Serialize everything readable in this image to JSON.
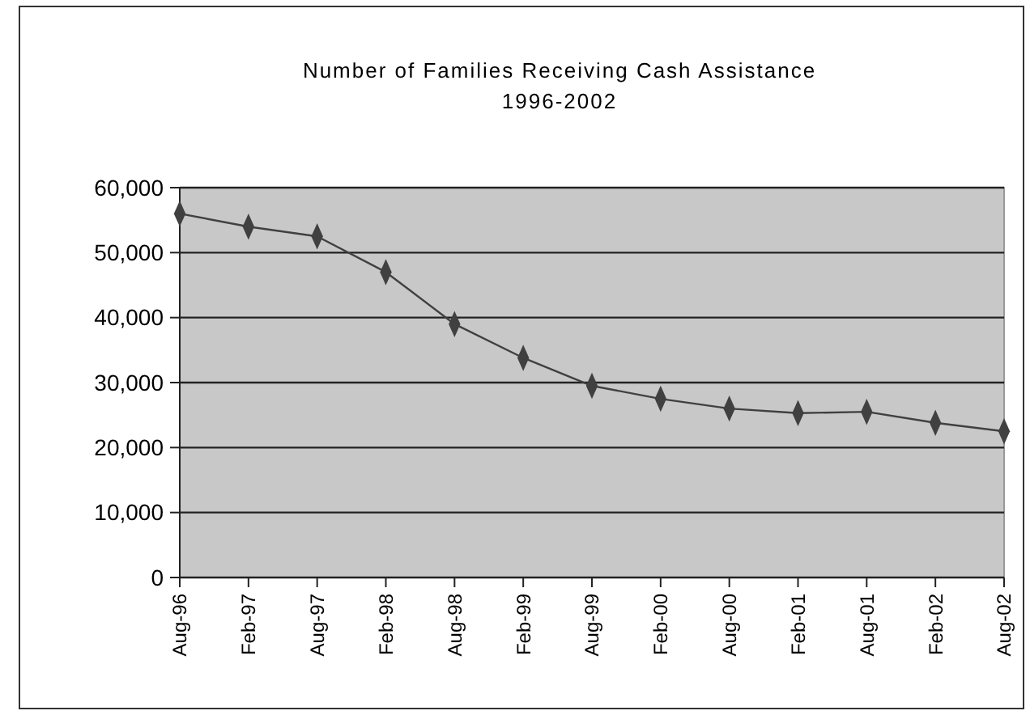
{
  "chart_data": {
    "type": "line",
    "title": "Number of Families Receiving Cash Assistance",
    "subtitle": "1996-2002",
    "categories": [
      "Aug-96",
      "Feb-97",
      "Aug-97",
      "Feb-98",
      "Aug-98",
      "Feb-99",
      "Aug-99",
      "Feb-00",
      "Aug-00",
      "Feb-01",
      "Aug-01",
      "Feb-02",
      "Aug-02"
    ],
    "series": [
      {
        "color": "#404040",
        "values": [
          56000,
          54000,
          52500,
          47000,
          39000,
          33800,
          29500,
          27500,
          26000,
          25300,
          25500,
          23800,
          22500
        ]
      }
    ],
    "ylim": [
      0,
      60000
    ],
    "yticks": [
      {
        "value": 0,
        "label": "0"
      },
      {
        "value": 10000,
        "label": "10,000"
      },
      {
        "value": 20000,
        "label": "20,000"
      },
      {
        "value": 30000,
        "label": "30,000"
      },
      {
        "value": 40000,
        "label": "40,000"
      },
      {
        "value": 50000,
        "label": "50,000"
      },
      {
        "value": 60000,
        "label": "60,000"
      }
    ],
    "grid": "y",
    "marker": "diamond",
    "line_style": "solid"
  }
}
